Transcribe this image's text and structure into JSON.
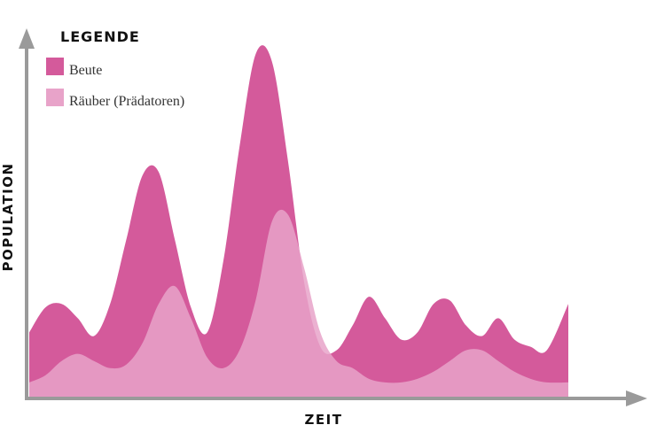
{
  "chart_data": {
    "type": "area",
    "title": "",
    "xlabel": "ZEIT",
    "ylabel": "POPULATION",
    "legend": {
      "title": "LEGENDE",
      "placement": "top-left"
    },
    "grid": false,
    "xlim": [
      0,
      100
    ],
    "ylim": [
      0,
      100
    ],
    "series": [
      {
        "name": "Beute",
        "color": "#d45a9b",
        "x": [
          0,
          3,
          6,
          9,
          12,
          15,
          18,
          21,
          24,
          27,
          30,
          33,
          36,
          39,
          42,
          45,
          48,
          51,
          54,
          57,
          60,
          63,
          66,
          69,
          72,
          75,
          78,
          81,
          84,
          87,
          90,
          93,
          96,
          100
        ],
        "values": [
          18,
          25,
          26,
          22,
          17,
          26,
          44,
          62,
          63,
          44,
          25,
          18,
          38,
          70,
          96,
          94,
          66,
          32,
          14,
          13,
          20,
          28,
          22,
          16,
          18,
          26,
          27,
          20,
          17,
          22,
          16,
          14,
          13,
          26
        ]
      },
      {
        "name": "Räuber (Prädatoren)",
        "color": "#e8a3c9",
        "x": [
          0,
          3,
          6,
          9,
          12,
          15,
          18,
          21,
          24,
          27,
          30,
          33,
          36,
          39,
          42,
          45,
          48,
          51,
          54,
          57,
          60,
          63,
          66,
          69,
          72,
          75,
          78,
          81,
          84,
          87,
          90,
          93,
          96,
          100
        ],
        "values": [
          4,
          6,
          10,
          12,
          10,
          8,
          9,
          15,
          26,
          31,
          22,
          11,
          8,
          13,
          27,
          49,
          51,
          36,
          18,
          10,
          8,
          5,
          4,
          4,
          5,
          7,
          10,
          13,
          13,
          10,
          7,
          5,
          4,
          4
        ]
      }
    ]
  }
}
